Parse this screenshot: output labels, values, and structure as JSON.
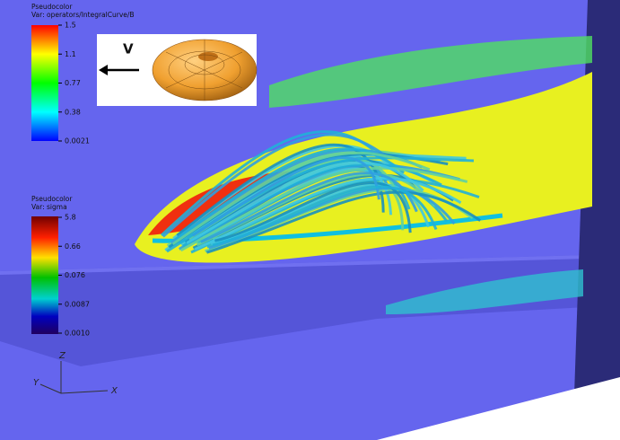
{
  "legend_b": {
    "title": "Pseudocolor",
    "variable": "Var: operators/IntegralCurve/B",
    "labels": [
      "1.5",
      "1.1",
      "0.77",
      "0.38",
      "0.0021"
    ]
  },
  "legend_sigma": {
    "title": "Pseudocolor",
    "variable": "Var: sigma",
    "labels": [
      "5.8",
      "0.66",
      "0.076",
      "0.0087",
      "0.0010"
    ]
  },
  "inset": {
    "label": "V"
  },
  "axes": {
    "z": "Z",
    "y": "Y",
    "x": "X"
  }
}
